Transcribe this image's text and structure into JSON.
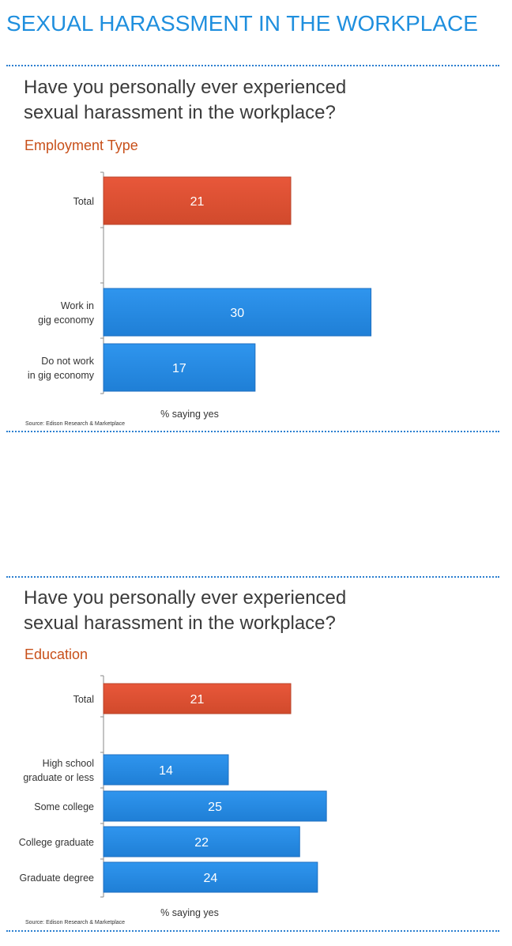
{
  "page_title": "SEXUAL HARASSMENT IN THE WORKPLACE",
  "colors": {
    "title": "#1f8fde",
    "accent": "#c8501a",
    "total_bar": "#e8573a",
    "group_bar": "#2f95ee",
    "divider": "#2b7fd0"
  },
  "panels": [
    {
      "question_line1": "Have you personally ever experienced",
      "question_line2": "sexual harassment in the workplace?",
      "subtitle": "Employment Type",
      "source": "Source: Edison Research & Marketplace"
    },
    {
      "question_line1": "Have you personally ever experienced",
      "question_line2": "sexual harassment in the workplace?",
      "subtitle": "Education",
      "source": "Source: Edison Research & Marketplace"
    }
  ],
  "chart_data": [
    {
      "type": "bar",
      "orientation": "horizontal",
      "title": "Employment Type",
      "xlabel": "% saying yes",
      "categories": [
        "Total",
        "Work in\ngig economy",
        "Do not work\nin gig economy"
      ],
      "values": [
        21,
        30,
        17
      ],
      "highlight": [
        true,
        false,
        false
      ],
      "xlim": [
        0,
        35
      ]
    },
    {
      "type": "bar",
      "orientation": "horizontal",
      "title": "Education",
      "xlabel": "% saying yes",
      "categories": [
        "Total",
        "High school\ngraduate or less",
        "Some college",
        "College graduate",
        "Graduate degree"
      ],
      "values": [
        21,
        14,
        25,
        22,
        24
      ],
      "highlight": [
        true,
        false,
        false,
        false,
        false
      ],
      "xlim": [
        0,
        35
      ]
    }
  ]
}
